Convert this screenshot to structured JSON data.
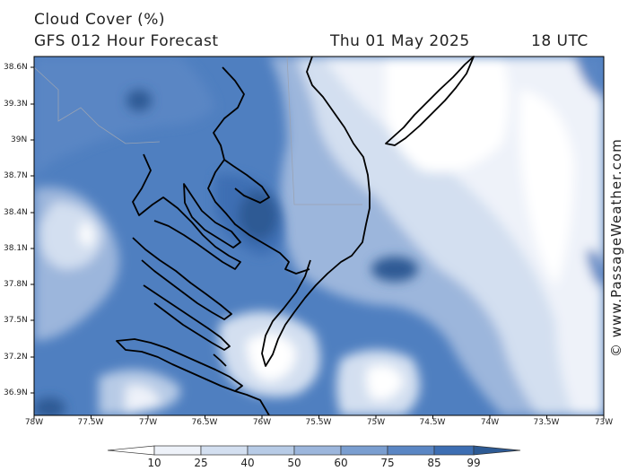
{
  "header": {
    "title": "Cloud Cover (%)",
    "model": "GFS 012 Hour Forecast",
    "date": "Thu 01 May 2025",
    "time": "18 UTC"
  },
  "credit": "© www.PassageWeather.com",
  "axes": {
    "latitudes": [
      "38.6N",
      "39.3N",
      "39N",
      "38.7N",
      "38.4N",
      "38.1N",
      "37.8N",
      "37.5N",
      "37.2N",
      "36.9N"
    ],
    "longitudes": [
      "78W",
      "77.5W",
      "77W",
      "76.5W",
      "76W",
      "75.5W",
      "75W",
      "74.5W",
      "74W",
      "73.5W",
      "73W"
    ]
  },
  "colorbar": {
    "labels": [
      "10",
      "25",
      "40",
      "50",
      "60",
      "75",
      "85",
      "99"
    ],
    "colors": [
      "#ffffff",
      "#eef2f9",
      "#d3dff0",
      "#b7cbe6",
      "#9cb6dc",
      "#7a9ed0",
      "#5a86c4",
      "#3d6eb3",
      "#2d5a94"
    ]
  }
}
